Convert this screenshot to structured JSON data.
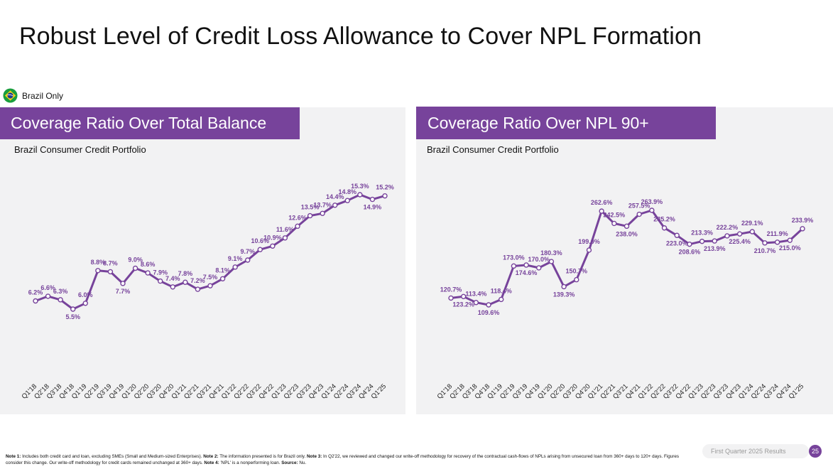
{
  "page": {
    "title": "Robust Level of Credit Loss Allowance to Cover NPL Formation",
    "region_label": "Brazil Only",
    "footer_label": "First Quarter 2025 Results",
    "page_number": "25",
    "notes": [
      {
        "label": "Note 1:",
        "text": " Includes both credit card and loan, excluding SMEs (Small and Medium-sized Enterprises). "
      },
      {
        "label": "Note 2:",
        "text": " The information presented is for Brazil only. "
      },
      {
        "label": "Note 3:",
        "text": " In Q2'22, we reviewed and changed our write-off methodology for recovery of the contractual cash-flows of NPLs arising from unsecured loan from 360+ days to 120+ days. Figures consider this change. Our write-off methodology for credit cards remained unchanged at 360+ days. "
      },
      {
        "label": "Note 4:",
        "text": " 'NPL' is a nonperforming loan. "
      },
      {
        "label": "Source:",
        "text": " Nu."
      }
    ]
  },
  "colors": {
    "accent": "#77439b",
    "panel_bg": "#f2f2f3"
  },
  "chart_data": [
    {
      "type": "line",
      "title": "Coverage Ratio Over Total Balance",
      "subtitle": "Brazil Consumer Credit Portfolio",
      "categories": [
        "Q1'18",
        "Q2'18",
        "Q3'18",
        "Q4'18",
        "Q1'19",
        "Q2'19",
        "Q3'19",
        "Q4'19",
        "Q1'20",
        "Q2'20",
        "Q3'20",
        "Q4'20",
        "Q1'21",
        "Q2'21",
        "Q3'21",
        "Q4'21",
        "Q1'22",
        "Q2'22",
        "Q3'22",
        "Q4'22",
        "Q1'23",
        "Q2'23",
        "Q3'23",
        "Q4'23",
        "Q1'24",
        "Q2'24",
        "Q3'24",
        "Q4'24",
        "Q1'25"
      ],
      "values": [
        6.2,
        6.6,
        6.3,
        5.5,
        6.0,
        8.8,
        8.7,
        7.7,
        9.0,
        8.6,
        7.9,
        7.4,
        7.8,
        7.2,
        7.5,
        8.1,
        9.1,
        9.7,
        10.6,
        10.9,
        11.6,
        12.6,
        13.5,
        13.7,
        14.4,
        14.8,
        15.3,
        14.9,
        15.2
      ],
      "labels": [
        "6.2%",
        "6.6%",
        "6.3%",
        "5.5%",
        "6.0%",
        "8.8%",
        "8.7%",
        "7.7%",
        "9.0%",
        "8.6%",
        "7.9%",
        "7.4%",
        "7.8%",
        "7.2%",
        "7.5%",
        "8.1%",
        "9.1%",
        "9.7%",
        "10.6%",
        "10.9%",
        "11.6%",
        "12.6%",
        "13.5%",
        "13.7%",
        "14.4%",
        "14.8%",
        "15.3%",
        "14.9%",
        "15.2%"
      ],
      "label_pos": [
        "above",
        "above",
        "above",
        "below",
        "above",
        "above",
        "above",
        "below",
        "above",
        "above",
        "above",
        "above",
        "above",
        "above",
        "above",
        "above",
        "above",
        "above",
        "above",
        "above",
        "above",
        "above",
        "above",
        "above",
        "above",
        "above",
        "above",
        "below",
        "above"
      ],
      "unit": "%"
    },
    {
      "type": "line",
      "title": "Coverage Ratio Over NPL 90+",
      "subtitle": "Brazil Consumer Credit Portfolio",
      "categories": [
        "Q1'18",
        "Q2'18",
        "Q3'18",
        "Q4'18",
        "Q1'19",
        "Q2'19",
        "Q3'19",
        "Q4'19",
        "Q1'20",
        "Q2'20",
        "Q3'20",
        "Q4'20",
        "Q1'21",
        "Q2'21",
        "Q3'21",
        "Q4'21",
        "Q1'22",
        "Q2'22",
        "Q3'22",
        "Q4'22",
        "Q1'23",
        "Q2'23",
        "Q3'23",
        "Q4'23",
        "Q1'24",
        "Q2'24",
        "Q3'24",
        "Q4'24",
        "Q1'25"
      ],
      "values": [
        120.7,
        123.2,
        113.4,
        109.6,
        118.4,
        173.0,
        174.6,
        170.0,
        180.3,
        139.3,
        150.7,
        199.0,
        262.6,
        242.5,
        238.0,
        257.5,
        263.9,
        235.2,
        223.0,
        208.6,
        213.3,
        213.9,
        222.2,
        225.4,
        229.1,
        210.7,
        211.9,
        215.0,
        233.9
      ],
      "labels": [
        "120.7%",
        "123.2%",
        "113.4%",
        "109.6%",
        "118.4%",
        "173.0%",
        "174.6%",
        "170.0%",
        "180.3%",
        "139.3%",
        "150.7%",
        "199.0%",
        "262.6%",
        "242.5%",
        "238.0%",
        "257.5%",
        "263.9%",
        "235.2%",
        "223.0%",
        "208.6%",
        "213.3%",
        "213.9%",
        "222.2%",
        "225.4%",
        "229.1%",
        "210.7%",
        "211.9%",
        "215.0%",
        "233.9%"
      ],
      "label_pos": [
        "above",
        "below",
        "above",
        "below",
        "above",
        "above",
        "below",
        "above",
        "above",
        "below",
        "above",
        "above",
        "above",
        "above",
        "below",
        "above",
        "above",
        "above",
        "below",
        "below",
        "above",
        "below",
        "above",
        "below",
        "above",
        "below",
        "above",
        "below",
        "above"
      ],
      "unit": "%"
    }
  ]
}
